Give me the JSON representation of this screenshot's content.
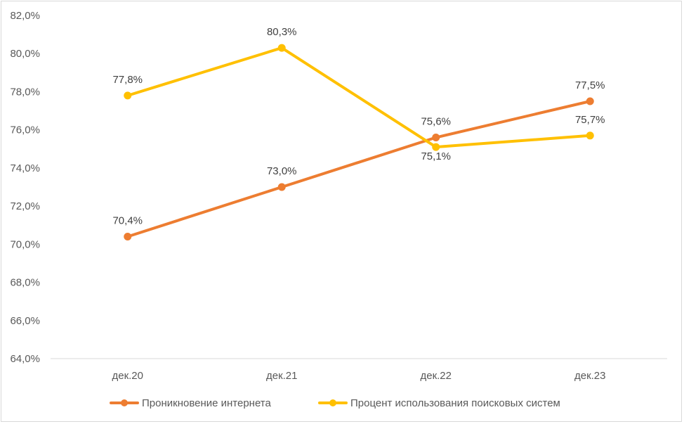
{
  "chart_data": {
    "type": "line",
    "categories": [
      "дек.20",
      "дек.21",
      "дек.22",
      "дек.23"
    ],
    "ylim": [
      64.0,
      82.0
    ],
    "ytick_step": 2.0,
    "y_tick_labels": [
      "64,0%",
      "66,0%",
      "68,0%",
      "70,0%",
      "72,0%",
      "74,0%",
      "76,0%",
      "78,0%",
      "80,0%",
      "82,0%"
    ],
    "grid": false,
    "legend_position": "bottom",
    "series": [
      {
        "name": "Проникновение интернета",
        "color": "#ED7D31",
        "values": [
          70.4,
          73.0,
          75.6,
          77.5
        ],
        "labels": [
          "70,4%",
          "73,0%",
          "75,6%",
          "77,5%"
        ]
      },
      {
        "name": "Процент использования поисковых систем",
        "color": "#FFC000",
        "values": [
          77.8,
          80.3,
          75.1,
          75.7
        ],
        "labels": [
          "77,8%",
          "80,3%",
          "75,1%",
          "75,7%"
        ]
      }
    ]
  }
}
